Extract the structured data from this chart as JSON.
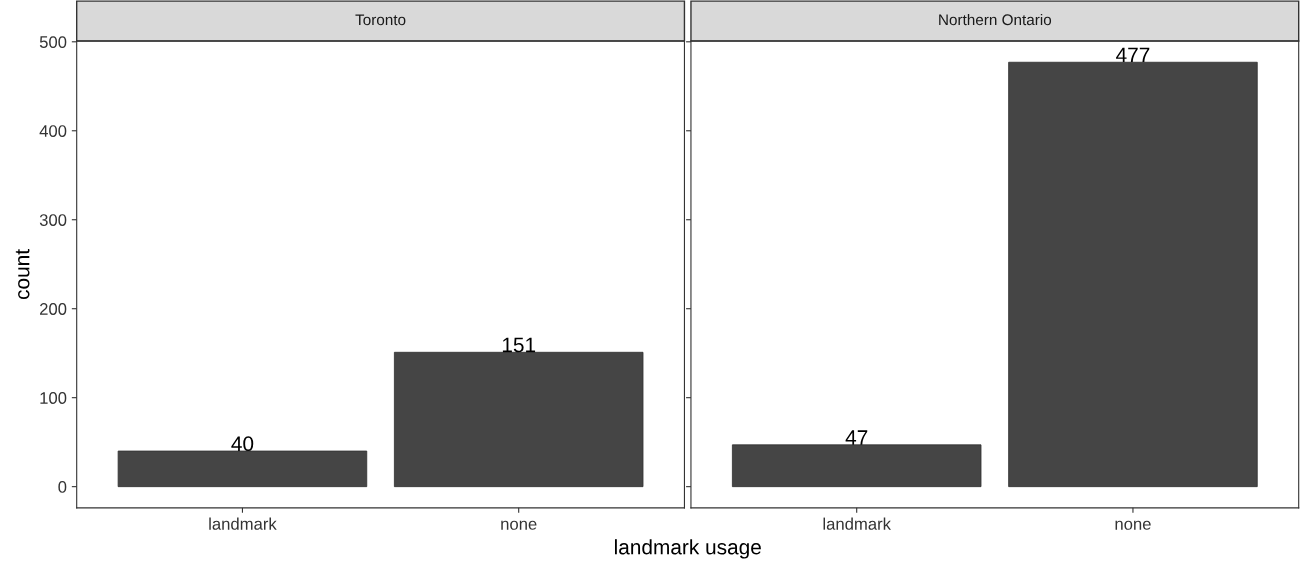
{
  "chart_data": [
    {
      "type": "bar",
      "title": "Toronto",
      "xlabel": "landmark usage",
      "ylabel": "count",
      "categories": [
        "landmark",
        "none"
      ],
      "values": [
        40,
        151
      ],
      "color": "#454545",
      "ylim": [
        -23.85,
        500.85
      ],
      "yticks": [
        0,
        100,
        200,
        300,
        400,
        500
      ],
      "data_labels": true,
      "grid": false
    },
    {
      "type": "bar",
      "title": "Northern Ontario",
      "categories": [
        "landmark",
        "none"
      ],
      "values": [
        47,
        477
      ],
      "color": "#454545",
      "ylim": [
        -23.85,
        500.85
      ],
      "yticks": [
        0,
        100,
        200,
        300,
        400,
        500
      ],
      "data_labels": true,
      "grid": false,
      "tick_labels": "x"
    }
  ]
}
